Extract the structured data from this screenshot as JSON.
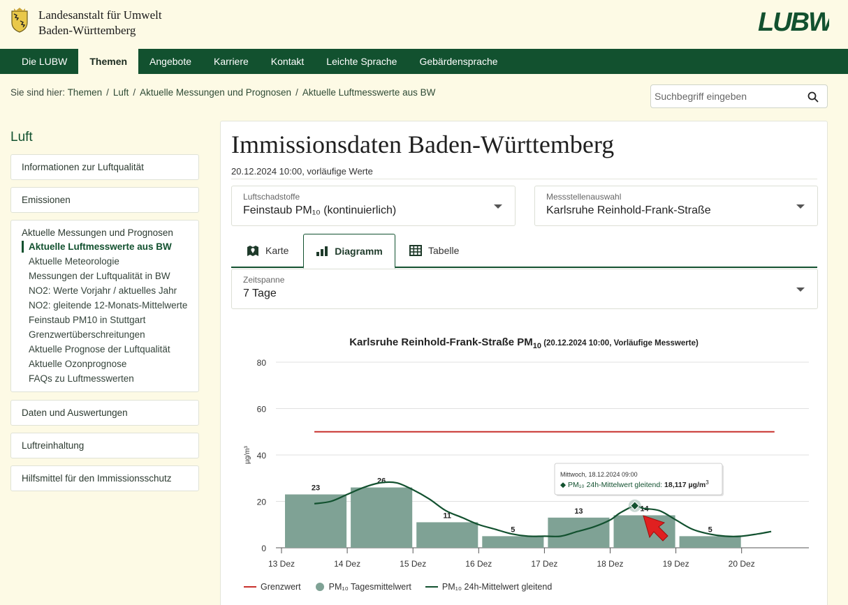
{
  "header": {
    "org_line1": "Landesanstalt für Umwelt",
    "org_line2": "Baden-Württemberg",
    "logo_text": "LUBW"
  },
  "nav": {
    "items": [
      "Die LUBW",
      "Themen",
      "Angebote",
      "Karriere",
      "Kontakt",
      "Leichte Sprache",
      "Gebärdensprache"
    ],
    "active": "Themen"
  },
  "breadcrumb": {
    "prefix": "Sie sind hier:",
    "items": [
      "Themen",
      "Luft",
      "Aktuelle Messungen und Prognosen",
      "Aktuelle Luftmesswerte aus BW"
    ],
    "separator": "/"
  },
  "search": {
    "placeholder": "Suchbegriff eingeben"
  },
  "sidebar": {
    "title": "Luft",
    "items": [
      "Informationen zur Luftqualität",
      "Emissionen"
    ],
    "group": {
      "head": "Aktuelle Messungen und Prognosen",
      "items": [
        "Aktuelle Luftmesswerte aus BW",
        "Aktuelle Meteorologie",
        "Messungen der Luftqualität in BW",
        "NO2: Werte Vorjahr / aktuelles Jahr",
        "NO2: gleitende 12-Monats-Mittelwerte",
        "Feinstaub PM10 in Stuttgart",
        "Grenzwertüberschreitungen",
        "Aktuelle Prognose der Luftqualität",
        "Aktuelle Ozonprognose",
        "FAQs zu Luftmesswerten"
      ]
    },
    "items_after": [
      "Daten und Auswertungen",
      "Luftreinhaltung",
      "Hilfsmittel für den Immissionsschutz"
    ]
  },
  "main": {
    "title": "Immissionsdaten Baden-Württemberg",
    "subtitle": "20.12.2024 10:00, vorläufige Werte",
    "pollutant": {
      "label": "Luftschadstoffe",
      "value": "Feinstaub PM₁₀ (kontinuierlich)"
    },
    "station": {
      "label": "Messstellenauswahl",
      "value": "Karlsruhe Reinhold-Frank-Straße"
    },
    "tabs": [
      "Karte",
      "Diagramm",
      "Tabelle"
    ],
    "active_tab": "Diagramm",
    "period": {
      "label": "Zeitspanne",
      "value": "7 Tage"
    }
  },
  "chart_data": {
    "type": "bar",
    "title": "Karlsruhe Reinhold-Frank-Straße PM",
    "title_sub": "10",
    "title_note": "(20.12.2024 10:00, Vorläufige Messwerte)",
    "ylabel": "µg/m³",
    "ylim": [
      0,
      80
    ],
    "yticks": [
      0,
      20,
      40,
      60,
      80
    ],
    "x_ticks": [
      "13 Dez",
      "14 Dez",
      "15 Dez",
      "16 Dez",
      "17 Dez",
      "18 Dez",
      "19 Dez",
      "20 Dez"
    ],
    "grid": true,
    "series": [
      {
        "name": "PM₁₀ Tagesmittelwert",
        "kind": "bar",
        "color": "#7fa295",
        "categories": [
          "13 Dez",
          "14 Dez",
          "15 Dez",
          "16 Dez",
          "17 Dez",
          "18 Dez",
          "19 Dez"
        ],
        "values": [
          23,
          26,
          11,
          5,
          13,
          14,
          5
        ]
      },
      {
        "name": "PM₁₀ 24h-Mittelwert gleitend",
        "kind": "line",
        "color": "#12512f",
        "x_days": [
          0.5,
          0.75,
          1.0,
          1.25,
          1.5,
          1.75,
          2.0,
          2.25,
          2.5,
          2.75,
          3.0,
          3.25,
          3.5,
          3.75,
          4.0,
          4.25,
          4.5,
          4.75,
          5.0,
          5.15,
          5.375,
          5.5,
          5.75,
          6.0,
          6.25,
          6.5,
          6.75,
          7.0,
          7.25,
          7.45
        ],
        "values": [
          19,
          20,
          23,
          26,
          28,
          28,
          25,
          21,
          16,
          13,
          10,
          8,
          6,
          5,
          5,
          5,
          7,
          9,
          12,
          15,
          18.117,
          17,
          16,
          12,
          8,
          6,
          5,
          5,
          6,
          7
        ]
      },
      {
        "name": "Grenzwert",
        "kind": "threshold",
        "color": "#c8302c",
        "value": 50
      }
    ],
    "tooltip": {
      "date": "Mittwoch, 18.12.2024 09:00",
      "label": "PM₁₀ 24h-Mittelwert gleitend:",
      "value": "18,117 µg/m",
      "unit_sup": "3"
    },
    "legend": [
      "Grenzwert",
      "PM₁₀ Tagesmittelwert",
      "PM₁₀ 24h-Mittelwert gleitend"
    ]
  }
}
